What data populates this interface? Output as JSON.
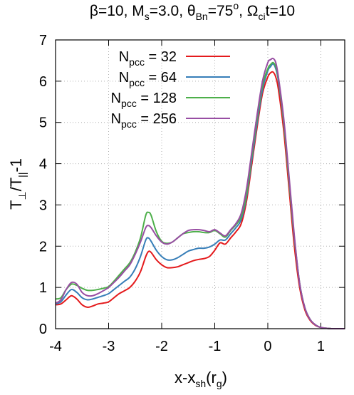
{
  "chart_data": {
    "type": "line",
    "title": {
      "beta": "β=10, M",
      "beta_sub": "s",
      "mach": "=3.0, θ",
      "theta_sub": "Bn",
      "angle": "=75",
      "angle_sup": "o",
      "omega": ",  Ω",
      "omega_sub": "ci",
      "time": "t=10"
    },
    "xlabel": {
      "main": "x-x",
      "sub": "sh",
      "paren_open": "(r",
      "paren_sub": "g",
      "paren_close": ")"
    },
    "ylabel": {
      "main": "T",
      "sub1": "⊥",
      "slash": "/T",
      "sub2": "||",
      "tail": "-1"
    },
    "xlim": [
      -4,
      1.45
    ],
    "ylim": [
      0,
      7
    ],
    "xticks": [
      -4,
      -3,
      -2,
      -1,
      0,
      1
    ],
    "xtick_labels": [
      "-4",
      "-3",
      "-2",
      "-1",
      "0",
      "1"
    ],
    "yticks": [
      0,
      1,
      2,
      3,
      4,
      5,
      6,
      7
    ],
    "ytick_labels": [
      "0",
      "1",
      "2",
      "3",
      "4",
      "5",
      "6",
      "7"
    ],
    "grid": true,
    "legend_position": "top-left",
    "legend_prefix": "N",
    "legend_sub": "pcc",
    "legend_eq": " =",
    "series": [
      {
        "name": "32",
        "color": "#e41a1c",
        "x": [
          -4.0,
          -3.9,
          -3.8,
          -3.7,
          -3.6,
          -3.5,
          -3.4,
          -3.3,
          -3.2,
          -3.1,
          -3.0,
          -2.9,
          -2.8,
          -2.7,
          -2.6,
          -2.5,
          -2.4,
          -2.3,
          -2.25,
          -2.2,
          -2.1,
          -2.0,
          -1.9,
          -1.8,
          -1.7,
          -1.6,
          -1.5,
          -1.4,
          -1.3,
          -1.2,
          -1.1,
          -1.0,
          -0.9,
          -0.8,
          -0.7,
          -0.6,
          -0.5,
          -0.4,
          -0.3,
          -0.2,
          -0.1,
          0.0,
          0.05,
          0.1,
          0.15,
          0.2,
          0.3,
          0.4,
          0.5,
          0.6,
          0.7,
          0.8,
          0.9,
          1.0,
          1.1,
          1.2,
          1.3,
          1.45
        ],
        "y": [
          0.58,
          0.6,
          0.7,
          0.8,
          0.72,
          0.58,
          0.52,
          0.55,
          0.6,
          0.62,
          0.65,
          0.75,
          0.85,
          0.92,
          1.0,
          1.15,
          1.38,
          1.75,
          1.87,
          1.85,
          1.67,
          1.55,
          1.48,
          1.48,
          1.5,
          1.55,
          1.6,
          1.65,
          1.68,
          1.7,
          1.75,
          1.9,
          2.08,
          2.05,
          2.2,
          2.35,
          2.55,
          3.1,
          4.0,
          4.9,
          5.7,
          6.1,
          6.2,
          6.22,
          6.1,
          5.8,
          4.8,
          3.4,
          2.0,
          1.0,
          0.45,
          0.2,
          0.08,
          0.03,
          0.01,
          0.0,
          0.0,
          0.0
        ]
      },
      {
        "name": "64",
        "color": "#377eb8",
        "x": [
          -4.0,
          -3.9,
          -3.8,
          -3.7,
          -3.6,
          -3.5,
          -3.4,
          -3.3,
          -3.2,
          -3.1,
          -3.0,
          -2.9,
          -2.8,
          -2.7,
          -2.6,
          -2.5,
          -2.4,
          -2.3,
          -2.25,
          -2.2,
          -2.1,
          -2.0,
          -1.9,
          -1.8,
          -1.7,
          -1.6,
          -1.5,
          -1.4,
          -1.3,
          -1.2,
          -1.1,
          -1.0,
          -0.9,
          -0.8,
          -0.7,
          -0.6,
          -0.5,
          -0.4,
          -0.3,
          -0.2,
          -0.1,
          0.0,
          0.05,
          0.1,
          0.15,
          0.2,
          0.3,
          0.4,
          0.5,
          0.6,
          0.7,
          0.8,
          0.9,
          1.0,
          1.1,
          1.2,
          1.3,
          1.45
        ],
        "y": [
          0.6,
          0.65,
          0.82,
          0.95,
          0.88,
          0.75,
          0.7,
          0.72,
          0.76,
          0.8,
          0.85,
          0.95,
          1.05,
          1.15,
          1.25,
          1.45,
          1.75,
          2.15,
          2.2,
          2.12,
          1.9,
          1.75,
          1.67,
          1.67,
          1.72,
          1.8,
          1.88,
          1.92,
          1.95,
          1.95,
          1.98,
          2.05,
          2.15,
          2.15,
          2.3,
          2.45,
          2.65,
          3.2,
          4.1,
          5.0,
          5.8,
          6.25,
          6.35,
          6.42,
          6.3,
          6.0,
          5.0,
          3.6,
          2.2,
          1.1,
          0.5,
          0.22,
          0.09,
          0.03,
          0.01,
          0.0,
          0.0,
          0.0
        ]
      },
      {
        "name": "128",
        "color": "#4daf4a",
        "x": [
          -4.0,
          -3.9,
          -3.8,
          -3.7,
          -3.6,
          -3.5,
          -3.4,
          -3.3,
          -3.2,
          -3.1,
          -3.0,
          -2.9,
          -2.8,
          -2.7,
          -2.6,
          -2.5,
          -2.4,
          -2.3,
          -2.25,
          -2.2,
          -2.1,
          -2.0,
          -1.9,
          -1.8,
          -1.7,
          -1.6,
          -1.5,
          -1.4,
          -1.3,
          -1.2,
          -1.1,
          -1.0,
          -0.9,
          -0.8,
          -0.7,
          -0.6,
          -0.5,
          -0.4,
          -0.3,
          -0.2,
          -0.1,
          0.0,
          0.05,
          0.1,
          0.15,
          0.2,
          0.3,
          0.4,
          0.5,
          0.6,
          0.7,
          0.8,
          0.9,
          1.0,
          1.1,
          1.2,
          1.3,
          1.45
        ],
        "y": [
          0.72,
          0.75,
          0.95,
          1.08,
          1.05,
          0.98,
          0.93,
          0.93,
          0.95,
          0.98,
          1.02,
          1.15,
          1.3,
          1.45,
          1.6,
          1.85,
          2.2,
          2.75,
          2.82,
          2.75,
          2.35,
          2.12,
          2.07,
          2.1,
          2.2,
          2.3,
          2.33,
          2.35,
          2.35,
          2.33,
          2.33,
          2.38,
          2.3,
          2.22,
          2.38,
          2.52,
          2.72,
          3.25,
          4.2,
          5.1,
          5.9,
          6.3,
          6.4,
          6.45,
          6.35,
          6.05,
          5.0,
          3.6,
          2.2,
          1.1,
          0.5,
          0.22,
          0.09,
          0.03,
          0.01,
          0.0,
          0.0,
          0.0
        ]
      },
      {
        "name": "256",
        "color": "#984ea3",
        "x": [
          -4.0,
          -3.9,
          -3.8,
          -3.7,
          -3.6,
          -3.5,
          -3.4,
          -3.3,
          -3.2,
          -3.1,
          -3.0,
          -2.9,
          -2.8,
          -2.7,
          -2.6,
          -2.5,
          -2.4,
          -2.3,
          -2.25,
          -2.2,
          -2.1,
          -2.0,
          -1.9,
          -1.8,
          -1.7,
          -1.6,
          -1.5,
          -1.4,
          -1.3,
          -1.2,
          -1.1,
          -1.0,
          -0.9,
          -0.8,
          -0.7,
          -0.6,
          -0.5,
          -0.4,
          -0.3,
          -0.2,
          -0.1,
          0.0,
          0.05,
          0.1,
          0.15,
          0.2,
          0.3,
          0.4,
          0.5,
          0.6,
          0.7,
          0.8,
          0.9,
          1.0,
          1.1,
          1.2,
          1.3,
          1.45
        ],
        "y": [
          0.62,
          0.7,
          0.95,
          1.12,
          1.08,
          0.88,
          0.8,
          0.8,
          0.85,
          0.92,
          1.0,
          1.12,
          1.25,
          1.4,
          1.55,
          1.8,
          2.1,
          2.45,
          2.5,
          2.45,
          2.25,
          2.1,
          2.05,
          2.1,
          2.2,
          2.3,
          2.38,
          2.4,
          2.4,
          2.38,
          2.35,
          2.4,
          2.32,
          2.25,
          2.4,
          2.55,
          2.8,
          3.4,
          4.3,
          5.2,
          6.0,
          6.45,
          6.52,
          6.55,
          6.45,
          6.1,
          5.1,
          3.7,
          2.25,
          1.1,
          0.5,
          0.22,
          0.09,
          0.03,
          0.01,
          0.0,
          0.0,
          0.0
        ]
      }
    ]
  }
}
